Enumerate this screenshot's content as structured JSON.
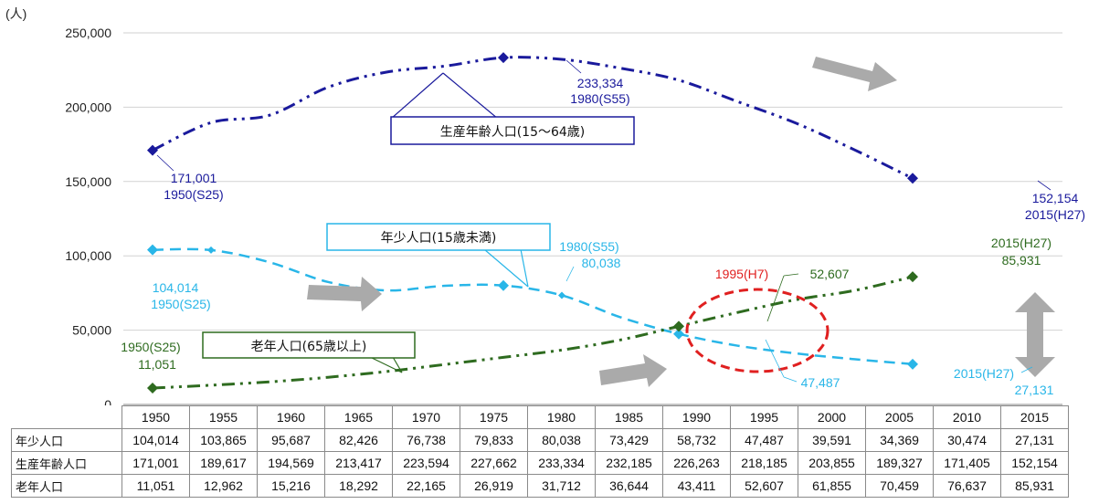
{
  "chart_data": {
    "type": "line",
    "unit_label": "(人)",
    "x": [
      1950,
      1955,
      1960,
      1965,
      1970,
      1975,
      1980,
      1985,
      1990,
      1995,
      2000,
      2005,
      2010,
      2015
    ],
    "ylim": [
      0,
      250000
    ],
    "yticks": [
      "0",
      "50,000",
      "100,000",
      "150,000",
      "200,000",
      "250,000"
    ],
    "grid": true,
    "series": [
      {
        "name": "生産年齢人口(15～64歳)",
        "color": "#1a1a9c",
        "values": [
          171001,
          189617,
          194569,
          213417,
          223594,
          227662,
          233334,
          232185,
          226263,
          218185,
          203855,
          189327,
          171405,
          152154
        ]
      },
      {
        "name": "年少人口(15歳未満)",
        "color": "#29b6e8",
        "values": [
          104014,
          103865,
          95687,
          82426,
          76738,
          79833,
          80038,
          73429,
          58732,
          47487,
          39591,
          34369,
          30474,
          27131
        ]
      },
      {
        "name": "老年人口(65歳以上)",
        "color": "#2e6b1f",
        "values": [
          11051,
          12962,
          15216,
          18292,
          22165,
          26919,
          31712,
          36644,
          43411,
          52607,
          61855,
          70459,
          76637,
          85931
        ]
      }
    ],
    "annotations": {
      "working_start": [
        "171,001",
        "1950(S25)"
      ],
      "working_peak": [
        "233,334",
        "1980(S55)"
      ],
      "working_end": [
        "152,154",
        "2015(H27)"
      ],
      "youth_start": [
        "104,014",
        "1950(S25)"
      ],
      "youth_1980": [
        "1980(S55)",
        "80,038"
      ],
      "youth_1995": "47,487",
      "youth_end": [
        "2015(H27)",
        "27,131"
      ],
      "elderly_start": [
        "1950(S25)",
        "11,051"
      ],
      "elderly_1995": "52,607",
      "elderly_end": [
        "2015(H27)",
        "85,931"
      ],
      "crossover": "1995(H7)"
    },
    "callouts": {
      "working": "生産年齢人口(15～64歳)",
      "youth": "年少人口(15歳未満)",
      "elderly": "老年人口(65歳以上)"
    },
    "table": {
      "years": [
        "1950",
        "1955",
        "1960",
        "1965",
        "1970",
        "1975",
        "1980",
        "1985",
        "1990",
        "1995",
        "2000",
        "2005",
        "2010",
        "2015"
      ],
      "rows": [
        {
          "label": "年少人口",
          "values": [
            "104,014",
            "103,865",
            "95,687",
            "82,426",
            "76,738",
            "79,833",
            "80,038",
            "73,429",
            "58,732",
            "47,487",
            "39,591",
            "34,369",
            "30,474",
            "27,131"
          ]
        },
        {
          "label": "生産年齢人口",
          "values": [
            "171,001",
            "189,617",
            "194,569",
            "213,417",
            "223,594",
            "227,662",
            "233,334",
            "232,185",
            "226,263",
            "218,185",
            "203,855",
            "189,327",
            "171,405",
            "152,154"
          ]
        },
        {
          "label": "老年人口",
          "values": [
            "11,051",
            "12,962",
            "15,216",
            "18,292",
            "22,165",
            "26,919",
            "31,712",
            "36,644",
            "43,411",
            "52,607",
            "61,855",
            "70,459",
            "76,637",
            "85,931"
          ]
        }
      ]
    }
  }
}
